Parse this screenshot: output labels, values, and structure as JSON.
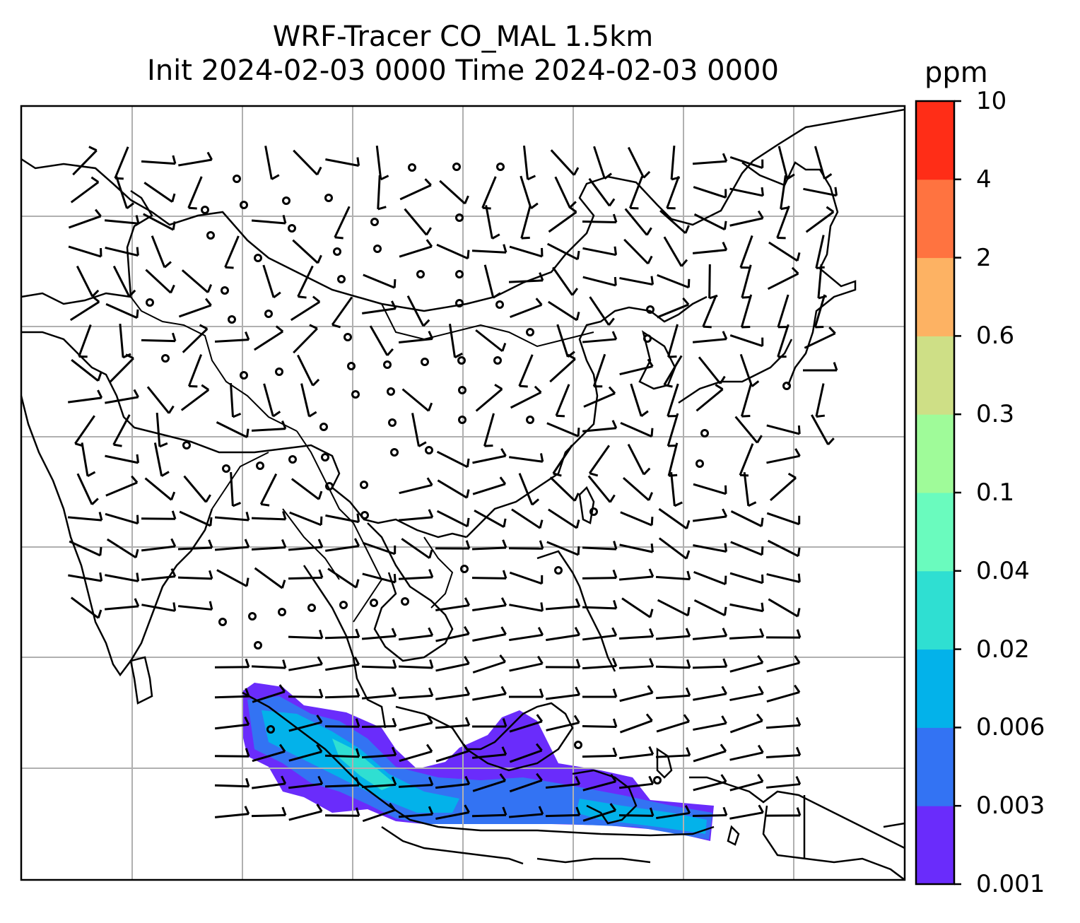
{
  "title": {
    "line1": "WRF-Tracer CO_MAL 1.5km",
    "line2": "Init 2024-02-03 0000 Time 2024-02-03 0000"
  },
  "colorbar": {
    "unit": "ppm",
    "levels": [
      "0.001",
      "0.003",
      "0.006",
      "0.02",
      "0.04",
      "0.1",
      "0.3",
      "0.6",
      "2",
      "4",
      "10"
    ],
    "colors": [
      "#6a2cfb",
      "#3373f3",
      "#03b2ea",
      "#2fdfd2",
      "#6afbbe",
      "#9ffb99",
      "#cedf86",
      "#fdb263",
      "#ff7340",
      "#ff2d17"
    ]
  },
  "chart_data": {
    "type": "heatmap",
    "variable": "CO_MAL tracer concentration with wind barbs",
    "units": "ppm",
    "scale": "discrete levels",
    "levels": [
      0.001,
      0.003,
      0.006,
      0.02,
      0.04,
      0.1,
      0.3,
      0.6,
      2,
      4,
      10
    ],
    "grid": true,
    "legend": "colorbar right",
    "overlays": [
      "coastlines",
      "country borders",
      "wind barbs"
    ]
  }
}
